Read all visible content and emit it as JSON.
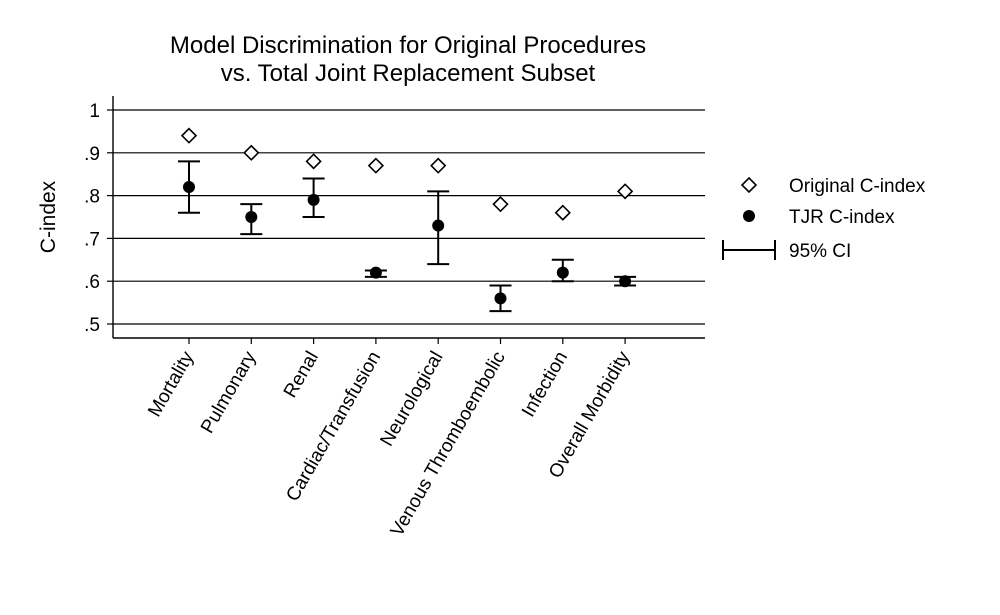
{
  "chart_data": {
    "type": "scatter",
    "title_lines": [
      "Model Discrimination for Original Procedures",
      "vs. Total Joint Replacement Subset"
    ],
    "ylabel": "C-index",
    "xlabel": "",
    "ylim": [
      0.47,
      1.03
    ],
    "yticks": [
      0.5,
      0.6,
      0.7,
      0.8,
      0.9,
      1.0
    ],
    "ytick_labels": [
      ".5",
      ".6",
      ".7",
      ".8",
      ".9",
      "1"
    ],
    "grid": true,
    "legend_position": "right",
    "categories": [
      "Mortality",
      "Pulmonary",
      "Renal",
      "Cardiac/Transfusion",
      "Neurological",
      "Venous Thromboembolic",
      "Infection",
      "Overall Morbidity"
    ],
    "series": [
      {
        "name": "Original C-index",
        "marker": "hollow-diamond",
        "values": [
          0.94,
          0.9,
          0.88,
          0.87,
          0.87,
          0.78,
          0.76,
          0.81
        ]
      },
      {
        "name": "TJR C-index",
        "marker": "filled-circle",
        "values": [
          0.82,
          0.75,
          0.79,
          0.62,
          0.73,
          0.56,
          0.62,
          0.6
        ],
        "ci_low": [
          0.76,
          0.71,
          0.75,
          0.61,
          0.64,
          0.53,
          0.6,
          0.59
        ],
        "ci_high": [
          0.88,
          0.78,
          0.84,
          0.625,
          0.81,
          0.59,
          0.65,
          0.61
        ]
      }
    ],
    "legend": [
      "Original C-index",
      "TJR C-index",
      "95% CI"
    ]
  }
}
